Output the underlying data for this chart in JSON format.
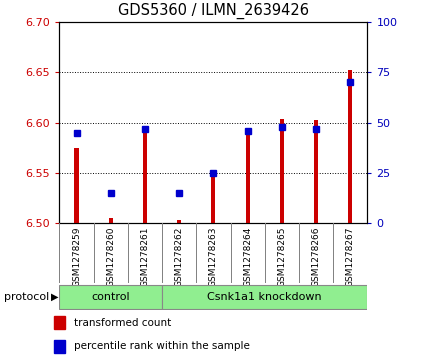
{
  "title": "GDS5360 / ILMN_2639426",
  "samples": [
    "GSM1278259",
    "GSM1278260",
    "GSM1278261",
    "GSM1278262",
    "GSM1278263",
    "GSM1278264",
    "GSM1278265",
    "GSM1278266",
    "GSM1278267"
  ],
  "transformed_count": [
    6.575,
    6.505,
    6.597,
    6.503,
    6.553,
    6.588,
    6.603,
    6.602,
    6.652
  ],
  "percentile_rank": [
    45,
    15,
    47,
    15,
    25,
    46,
    48,
    47,
    70
  ],
  "ylim_left": [
    6.5,
    6.7
  ],
  "ylim_right": [
    0,
    100
  ],
  "yticks_left": [
    6.5,
    6.55,
    6.6,
    6.65,
    6.7
  ],
  "yticks_right": [
    0,
    25,
    50,
    75,
    100
  ],
  "bar_color": "#cc0000",
  "dot_color": "#0000cc",
  "bar_bottom": 6.5,
  "control_count": 3,
  "knockdown_count": 6,
  "group_labels": [
    "control",
    "Csnk1a1 knockdown"
  ],
  "group_color": "#90ee90",
  "protocol_label": "protocol",
  "legend_items": [
    {
      "label": "transformed count",
      "color": "#cc0000"
    },
    {
      "label": "percentile rank within the sample",
      "color": "#0000cc"
    }
  ],
  "background_color": "#ffffff",
  "plot_bg_color": "#ffffff",
  "tick_label_color_left": "#cc0000",
  "tick_label_color_right": "#0000bb",
  "bar_width": 0.12,
  "dot_size": 5
}
